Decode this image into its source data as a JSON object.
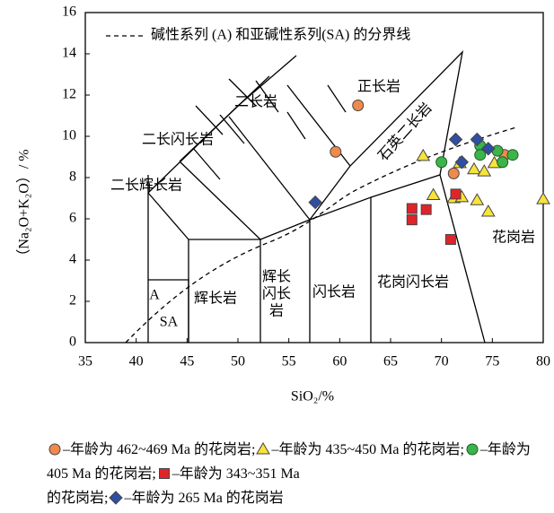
{
  "chart_data": {
    "type": "scatter",
    "xlabel": "SiO₂/%",
    "ylabel": "（Na₂O+K₂O）/ %",
    "xlim": [
      35,
      80
    ],
    "xticks": [
      35,
      40,
      45,
      50,
      55,
      60,
      65,
      70,
      75,
      80
    ],
    "ylim": [
      0,
      16
    ],
    "yticks": [
      0,
      2,
      4,
      6,
      8,
      10,
      12,
      14,
      16
    ],
    "boundary_label": "碱性系列 (A) 和亚碱性系列(SA) 的分界线",
    "field_labels": [
      "正长岩",
      "二长岩",
      "二长闪长岩",
      "二长辉长岩",
      "石英二长岩",
      "辉长岩",
      "辉长",
      "闪长",
      "岩",
      "闪长岩",
      "花岗闪长岩",
      "花岗岩",
      "A",
      "SA"
    ],
    "series": [
      {
        "name": "年龄为 462~469 Ma 的花岗岩",
        "color": "#f08a4b",
        "marker": "circle",
        "x": [
          61.8,
          59.6,
          71.2,
          76.2
        ],
        "values": [
          11.5,
          9.25,
          8.2,
          9.1
        ]
      },
      {
        "name": "年龄为 435~450 Ma 的花岗岩",
        "color": "#f7e43a",
        "marker": "triangle",
        "x": [
          68.2,
          71.8,
          73.2,
          74.2,
          75.2,
          69.2,
          71.2,
          72.0,
          73.5,
          74.6,
          80.0
        ],
        "values": [
          9.05,
          8.7,
          8.4,
          8.3,
          8.7,
          7.15,
          7.0,
          7.05,
          6.9,
          6.35,
          6.95
        ]
      },
      {
        "name": "年龄为 405 Ma 的花岗岩",
        "color": "#3cb44a",
        "marker": "circle",
        "x": [
          70.0,
          73.8,
          73.8,
          75.5,
          76.0,
          77.0
        ],
        "values": [
          8.75,
          9.55,
          9.1,
          9.3,
          8.75,
          9.1
        ]
      },
      {
        "name": "年龄为 343~351 Ma",
        "color": "#e0242a",
        "marker": "square",
        "x": [
          67.1,
          68.5,
          67.1,
          70.9,
          71.4
        ],
        "values": [
          6.5,
          6.45,
          5.95,
          5.0,
          7.2
        ]
      },
      {
        "name": "年龄为 265 Ma 的花岗岩",
        "color": "#2f4fa2",
        "marker": "diamond",
        "x": [
          57.6,
          71.4,
          73.5,
          74.6,
          72.0
        ],
        "values": [
          6.8,
          9.85,
          9.85,
          9.4,
          8.75
        ]
      }
    ],
    "legend_suffix": [
      "",
      "",
      "",
      "的花岗岩",
      ""
    ]
  }
}
